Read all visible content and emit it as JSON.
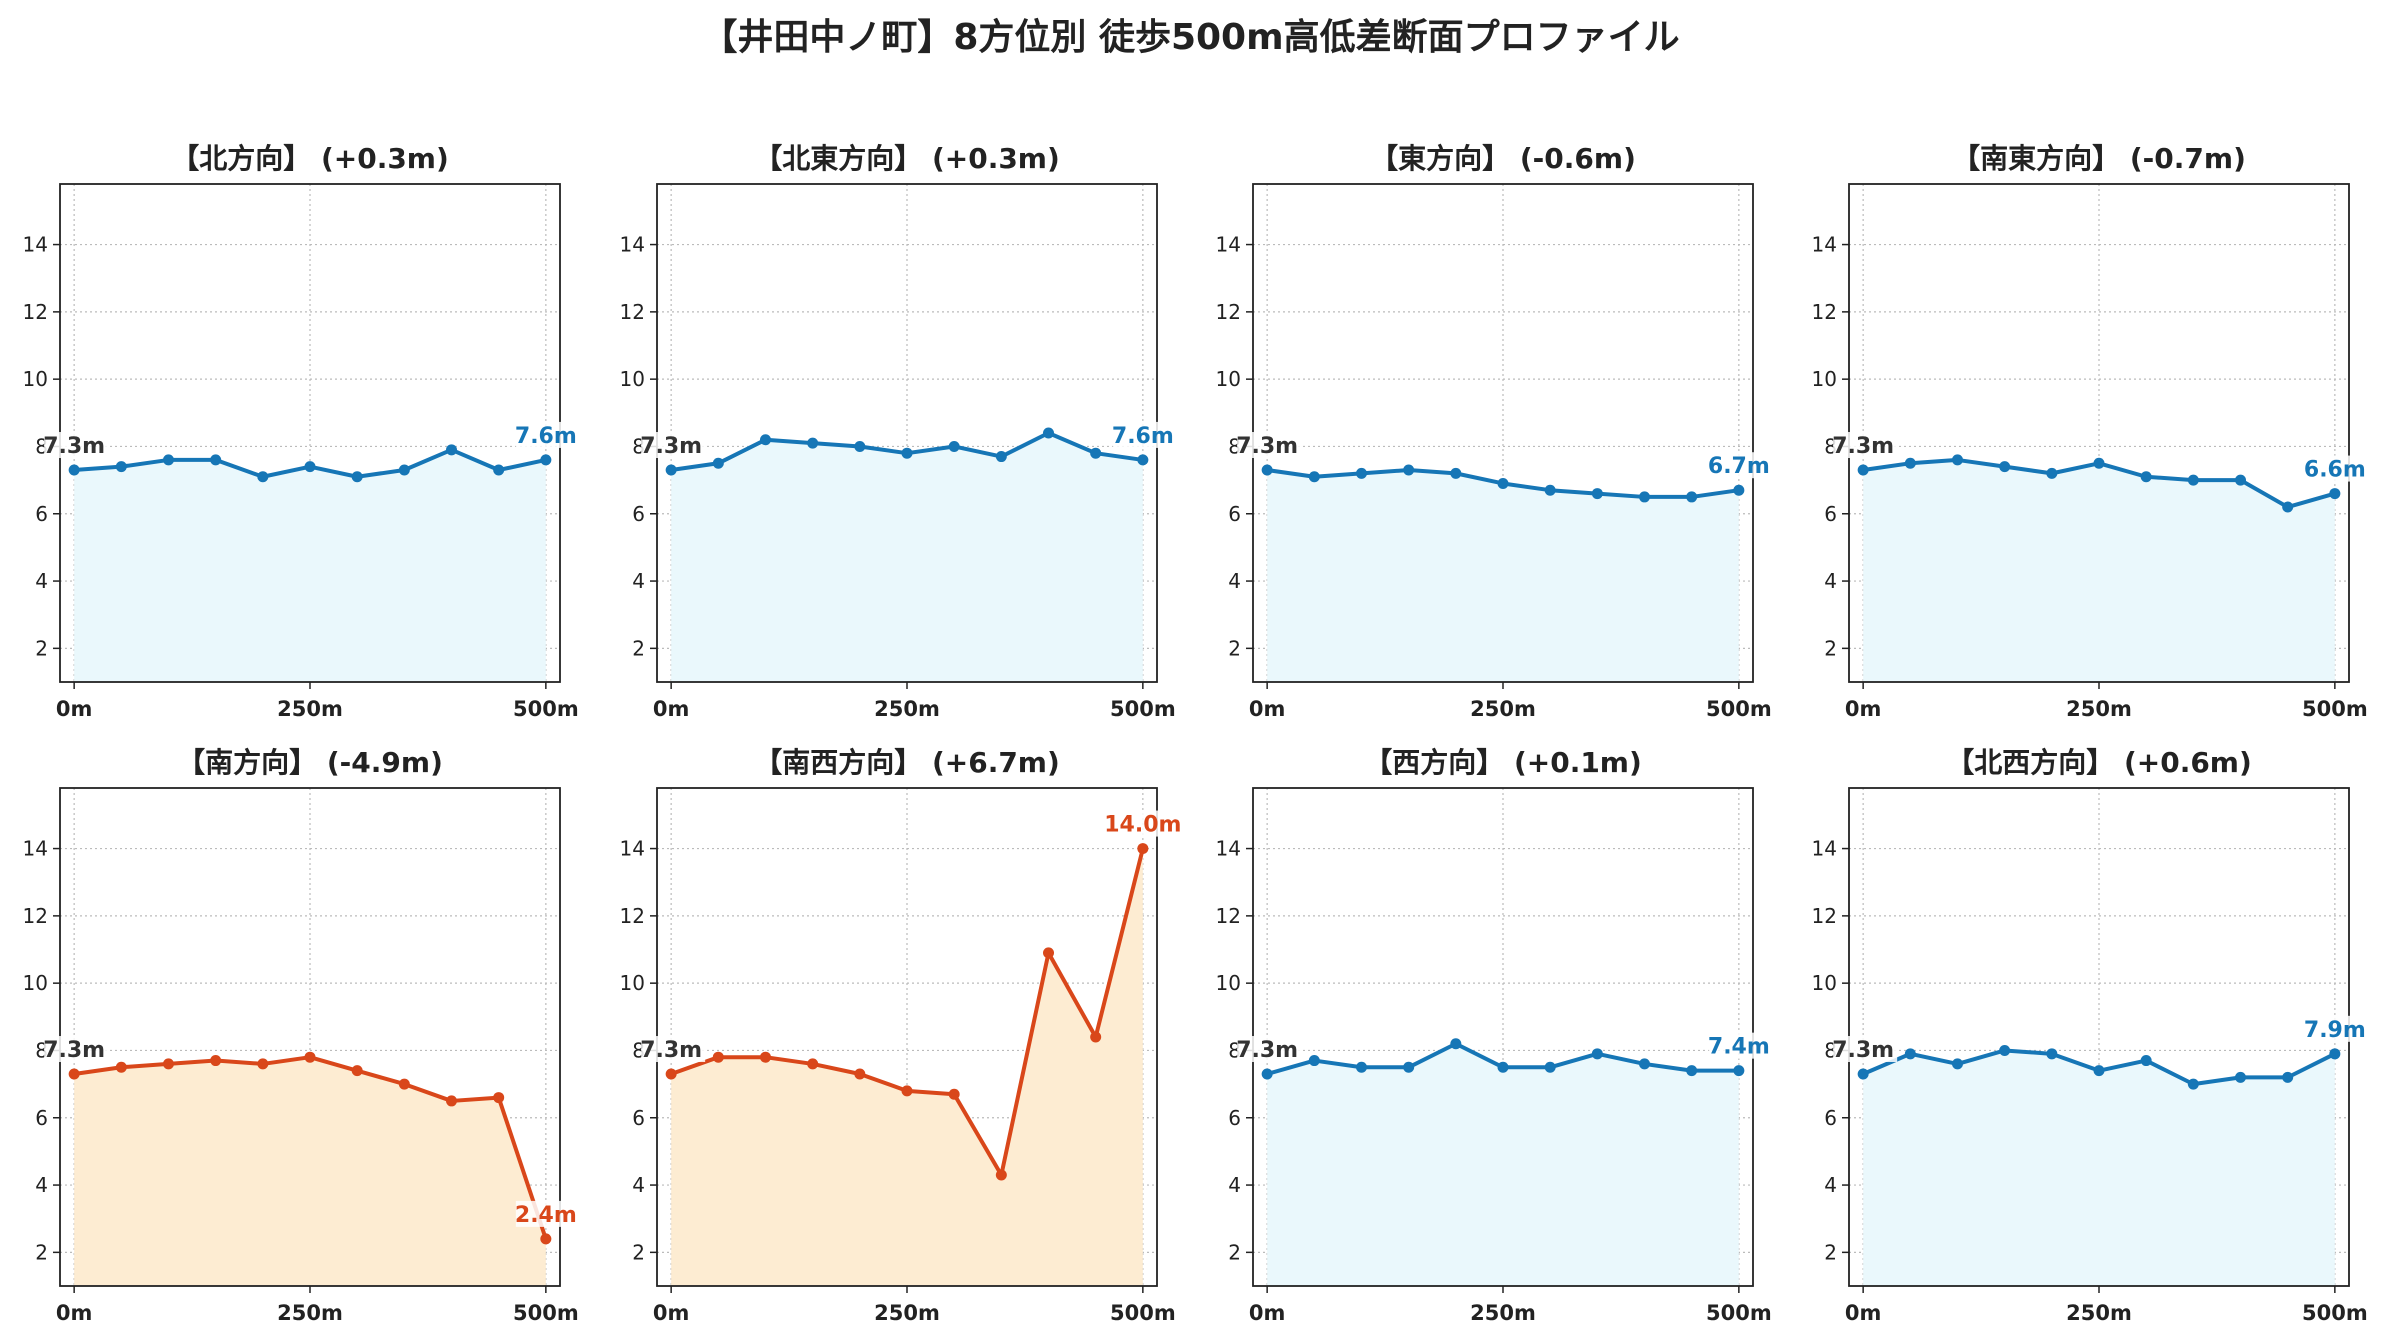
{
  "title": "【井田中ノ町】8方位別 徒歩500m高低差断面プロファイル",
  "colors": {
    "up_line": "#1676b6",
    "up_fill": "#eaf8fc",
    "down_line": "#d9471a",
    "down_fill": "#fdecd2",
    "start_label": "#333333",
    "grid": "#bbbbbb"
  },
  "chart_data": [
    {
      "type": "area",
      "title": "【北方向】 (+0.3m)",
      "style": "normal",
      "x_ticks": [
        "0m",
        "250m",
        "500m"
      ],
      "y_ticks": [
        "2",
        "4",
        "6",
        "8",
        "10",
        "12",
        "14"
      ],
      "ylim": [
        1,
        15.8
      ],
      "xlim": [
        -15,
        515
      ],
      "x": [
        0,
        50,
        100,
        150,
        200,
        250,
        300,
        350,
        400,
        450,
        500
      ],
      "values": [
        7.3,
        7.4,
        7.6,
        7.6,
        7.1,
        7.4,
        7.1,
        7.3,
        7.9,
        7.3,
        7.6
      ],
      "start_label": "7.3m",
      "end_label": "7.6m"
    },
    {
      "type": "area",
      "title": "【北東方向】 (+0.3m)",
      "style": "normal",
      "x_ticks": [
        "0m",
        "250m",
        "500m"
      ],
      "y_ticks": [
        "2",
        "4",
        "6",
        "8",
        "10",
        "12",
        "14"
      ],
      "ylim": [
        1,
        15.8
      ],
      "xlim": [
        -15,
        515
      ],
      "x": [
        0,
        50,
        100,
        150,
        200,
        250,
        300,
        350,
        400,
        450,
        500
      ],
      "values": [
        7.3,
        7.5,
        8.2,
        8.1,
        8.0,
        7.8,
        8.0,
        7.7,
        8.4,
        7.8,
        7.6
      ],
      "start_label": "7.3m",
      "end_label": "7.6m"
    },
    {
      "type": "area",
      "title": "【東方向】 (-0.6m)",
      "style": "normal",
      "x_ticks": [
        "0m",
        "250m",
        "500m"
      ],
      "y_ticks": [
        "2",
        "4",
        "6",
        "8",
        "10",
        "12",
        "14"
      ],
      "ylim": [
        1,
        15.8
      ],
      "xlim": [
        -15,
        515
      ],
      "x": [
        0,
        50,
        100,
        150,
        200,
        250,
        300,
        350,
        400,
        450,
        500
      ],
      "values": [
        7.3,
        7.1,
        7.2,
        7.3,
        7.2,
        6.9,
        6.7,
        6.6,
        6.5,
        6.5,
        6.7
      ],
      "start_label": "7.3m",
      "end_label": "6.7m"
    },
    {
      "type": "area",
      "title": "【南東方向】 (-0.7m)",
      "style": "normal",
      "x_ticks": [
        "0m",
        "250m",
        "500m"
      ],
      "y_ticks": [
        "2",
        "4",
        "6",
        "8",
        "10",
        "12",
        "14"
      ],
      "ylim": [
        1,
        15.8
      ],
      "xlim": [
        -15,
        515
      ],
      "x": [
        0,
        50,
        100,
        150,
        200,
        250,
        300,
        350,
        400,
        450,
        500
      ],
      "values": [
        7.3,
        7.5,
        7.6,
        7.4,
        7.2,
        7.5,
        7.1,
        7.0,
        7.0,
        6.2,
        6.6
      ],
      "start_label": "7.3m",
      "end_label": "6.6m"
    },
    {
      "type": "area",
      "title": "【南方向】 (-4.9m)",
      "style": "alert",
      "x_ticks": [
        "0m",
        "250m",
        "500m"
      ],
      "y_ticks": [
        "2",
        "4",
        "6",
        "8",
        "10",
        "12",
        "14"
      ],
      "ylim": [
        1,
        15.8
      ],
      "xlim": [
        -15,
        515
      ],
      "x": [
        0,
        50,
        100,
        150,
        200,
        250,
        300,
        350,
        400,
        450,
        500
      ],
      "values": [
        7.3,
        7.5,
        7.6,
        7.7,
        7.6,
        7.8,
        7.4,
        7.0,
        6.5,
        6.6,
        2.4
      ],
      "start_label": "7.3m",
      "end_label": "2.4m"
    },
    {
      "type": "area",
      "title": "【南西方向】 (+6.7m)",
      "style": "alert",
      "x_ticks": [
        "0m",
        "250m",
        "500m"
      ],
      "y_ticks": [
        "2",
        "4",
        "6",
        "8",
        "10",
        "12",
        "14"
      ],
      "ylim": [
        1,
        15.8
      ],
      "xlim": [
        -15,
        515
      ],
      "x": [
        0,
        50,
        100,
        150,
        200,
        250,
        300,
        350,
        400,
        450,
        500
      ],
      "values": [
        7.3,
        7.8,
        7.8,
        7.6,
        7.3,
        6.8,
        6.7,
        4.3,
        10.9,
        8.4,
        14.0
      ],
      "start_label": "7.3m",
      "end_label": "14.0m"
    },
    {
      "type": "area",
      "title": "【西方向】 (+0.1m)",
      "style": "normal",
      "x_ticks": [
        "0m",
        "250m",
        "500m"
      ],
      "y_ticks": [
        "2",
        "4",
        "6",
        "8",
        "10",
        "12",
        "14"
      ],
      "ylim": [
        1,
        15.8
      ],
      "xlim": [
        -15,
        515
      ],
      "x": [
        0,
        50,
        100,
        150,
        200,
        250,
        300,
        350,
        400,
        450,
        500
      ],
      "values": [
        7.3,
        7.7,
        7.5,
        7.5,
        8.2,
        7.5,
        7.5,
        7.9,
        7.6,
        7.4,
        7.4
      ],
      "start_label": "7.3m",
      "end_label": "7.4m"
    },
    {
      "type": "area",
      "title": "【北西方向】 (+0.6m)",
      "style": "normal",
      "x_ticks": [
        "0m",
        "250m",
        "500m"
      ],
      "y_ticks": [
        "2",
        "4",
        "6",
        "8",
        "10",
        "12",
        "14"
      ],
      "ylim": [
        1,
        15.8
      ],
      "xlim": [
        -15,
        515
      ],
      "x": [
        0,
        50,
        100,
        150,
        200,
        250,
        300,
        350,
        400,
        450,
        500
      ],
      "values": [
        7.3,
        7.9,
        7.6,
        8.0,
        7.9,
        7.4,
        7.7,
        7.0,
        7.2,
        7.2,
        7.9
      ],
      "start_label": "7.3m",
      "end_label": "7.9m"
    }
  ]
}
